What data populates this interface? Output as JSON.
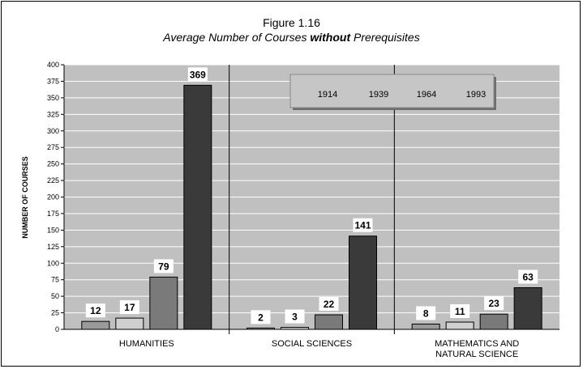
{
  "chart_data": {
    "type": "bar",
    "title": "Figure 1.16",
    "subtitle_parts": [
      "Average Number of Courses ",
      "without",
      " Prerequisites"
    ],
    "ylabel": "NUMBER OF COURSES",
    "ylim": [
      0,
      400
    ],
    "yticks": [
      "0",
      "25",
      "50",
      "75",
      "100",
      "125",
      "150",
      "175",
      "200",
      "225",
      "250",
      "275",
      "300",
      "325",
      "350",
      "375",
      "400"
    ],
    "categories": [
      [
        "HUMANITIES"
      ],
      [
        "SOCIAL SCIENCES"
      ],
      [
        "MATHEMATICS AND",
        "NATURAL SCIENCE"
      ]
    ],
    "series": [
      {
        "name": "1914",
        "values": [
          12,
          2,
          8
        ],
        "color": "#9a9a9a"
      },
      {
        "name": "1939",
        "values": [
          17,
          3,
          11
        ],
        "color": "#d0d0d0"
      },
      {
        "name": "1964",
        "values": [
          79,
          22,
          23
        ],
        "color": "#7a7a7a"
      },
      {
        "name": "1993",
        "values": [
          369,
          141,
          63
        ],
        "color": "#3a3a3a"
      }
    ],
    "legend": {
      "position": "top-right"
    },
    "grid": true,
    "colors": {
      "plot_bg": "#c0c0c0",
      "grid": "#ffffff"
    }
  }
}
